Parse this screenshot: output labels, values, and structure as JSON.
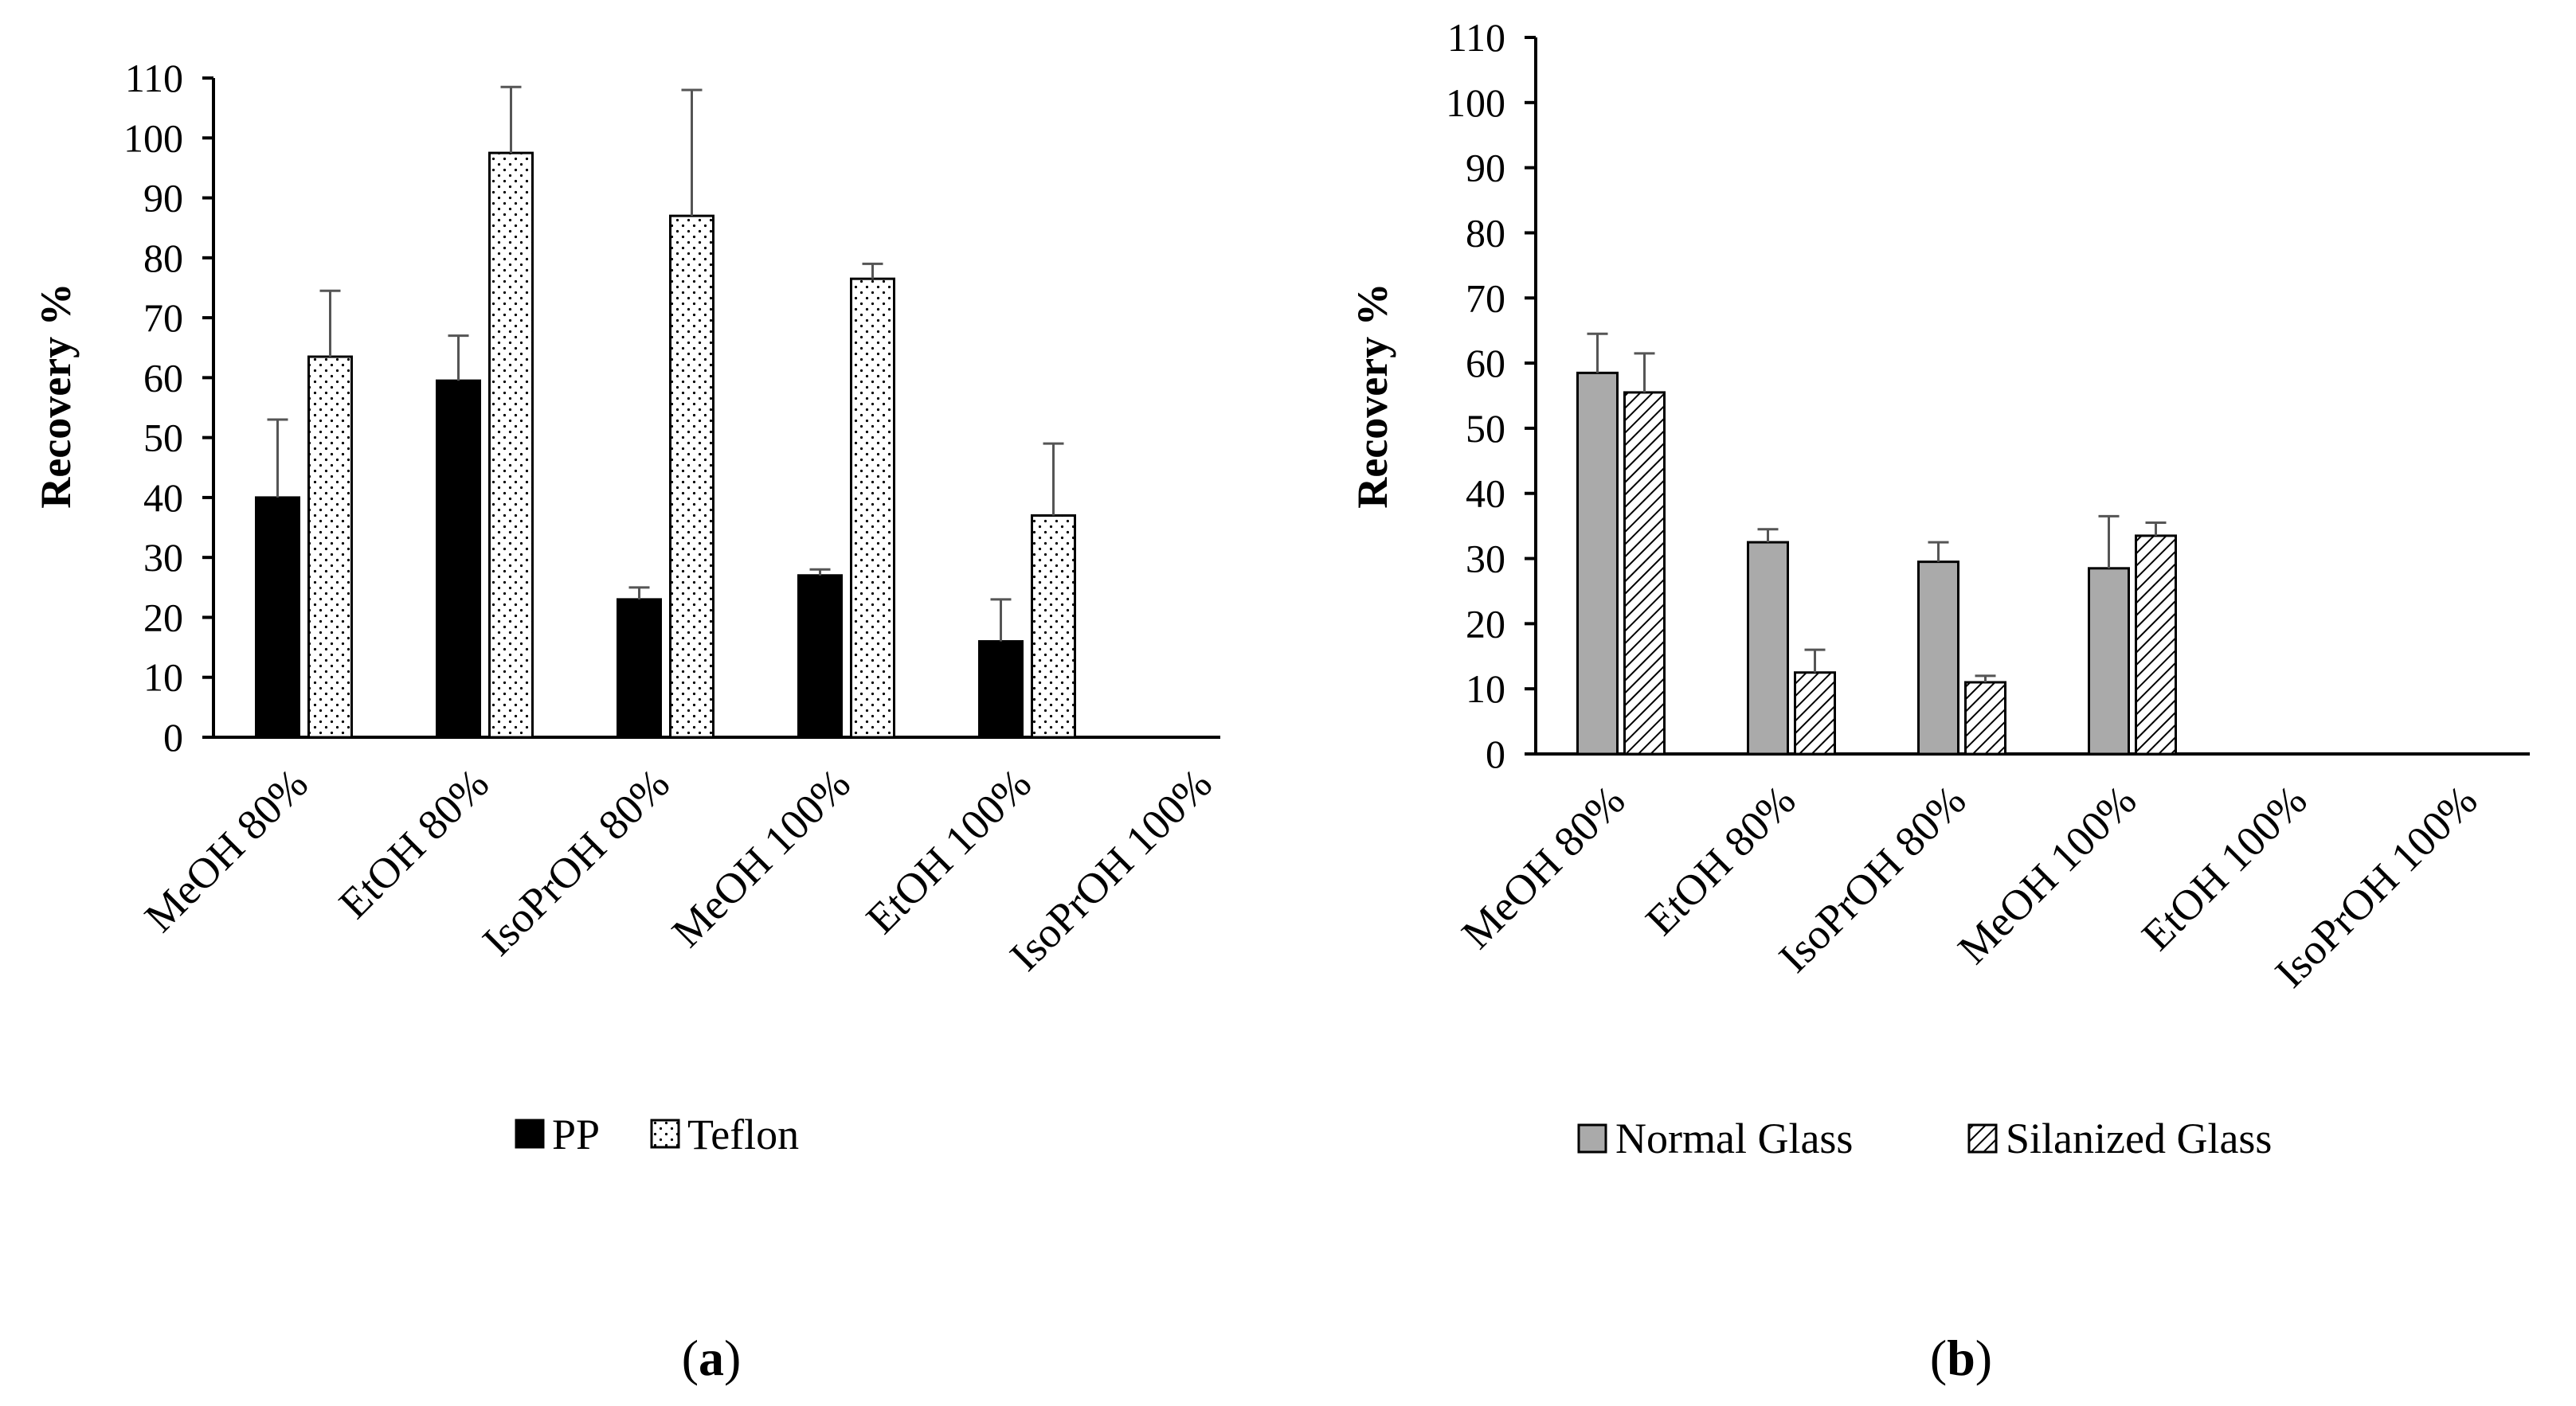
{
  "chart_data": [
    {
      "type": "bar",
      "panel_label": "a",
      "ylabel": "Recovery %",
      "xlabel": "",
      "ylim": [
        0,
        110
      ],
      "yticks": [
        0,
        10,
        20,
        30,
        40,
        50,
        60,
        70,
        80,
        90,
        100,
        110
      ],
      "categories": [
        "MeOH 80%",
        "EtOH 80%",
        "IsoPrOH 80%",
        "MeOH 100%",
        "EtOH 100%",
        "IsoPrOH 100%"
      ],
      "series": [
        {
          "name": "PP",
          "pattern": "solid",
          "fill": "#000000",
          "values": [
            40,
            59.5,
            23,
            27,
            16,
            null
          ],
          "errors": [
            13,
            7.5,
            2,
            1,
            7,
            null
          ]
        },
        {
          "name": "Teflon",
          "pattern": "dots",
          "fill": "#ffffff",
          "values": [
            63.5,
            97.5,
            87,
            76.5,
            37,
            null
          ],
          "errors": [
            11,
            11,
            21,
            2.5,
            12,
            null
          ]
        }
      ],
      "legend_position": "bottom"
    },
    {
      "type": "bar",
      "panel_label": "b",
      "ylabel": "Recovery %",
      "xlabel": "",
      "ylim": [
        0,
        110
      ],
      "yticks": [
        0,
        10,
        20,
        30,
        40,
        50,
        60,
        70,
        80,
        90,
        100,
        110
      ],
      "categories": [
        "MeOH 80%",
        "EtOH 80%",
        "IsoPrOH 80%",
        "MeOH 100%",
        "EtOH 100%",
        "IsoPrOH 100%"
      ],
      "series": [
        {
          "name": "Normal Glass",
          "pattern": "solid",
          "fill": "#aaaaaa",
          "values": [
            58.5,
            32.5,
            29.5,
            28.5,
            null,
            null
          ],
          "errors": [
            6,
            2,
            3,
            8,
            null,
            null
          ]
        },
        {
          "name": "Silanized Glass",
          "pattern": "diagonal-hatch",
          "fill": "#ffffff",
          "values": [
            55.5,
            12.5,
            11,
            33.5,
            null,
            null
          ],
          "errors": [
            6,
            3.5,
            1,
            2,
            null,
            null
          ]
        }
      ],
      "legend_position": "bottom"
    }
  ]
}
